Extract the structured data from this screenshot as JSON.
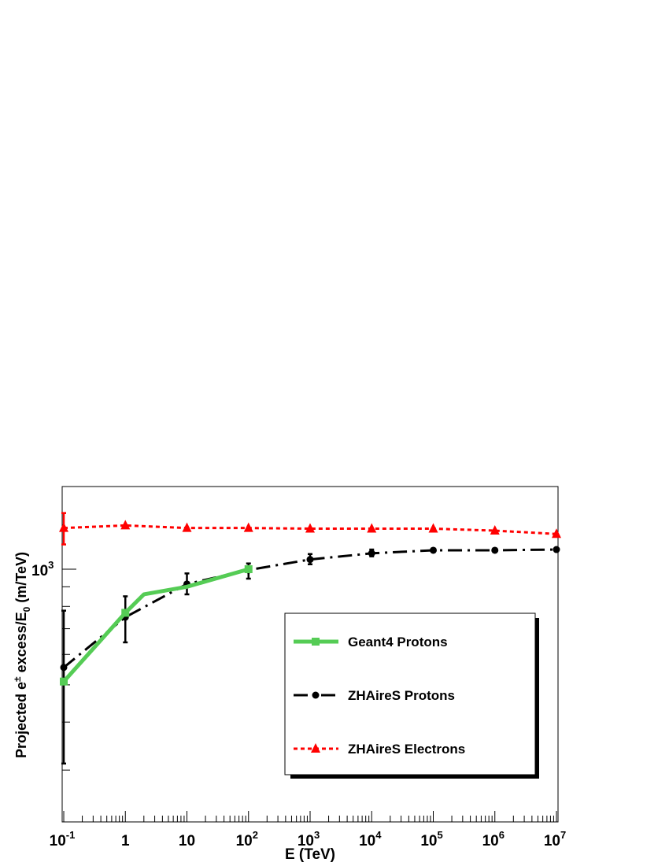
{
  "chart_data": {
    "type": "line",
    "x_scale": "log",
    "y_scale": "log",
    "xlabel": "E (TeV)",
    "ylabel": {
      "before_sup": "Projected e",
      "sup": "±",
      "after_sup": " excess/E",
      "sub": "0",
      "after_sub": " (m/TeV)"
    },
    "xlim": [
      0.1,
      10000000
    ],
    "ylim": [
      300,
      1600
    ],
    "x_ticks": [
      {
        "value": 0.1,
        "base": "10",
        "exp": "-1"
      },
      {
        "value": 1,
        "base": "1",
        "exp": ""
      },
      {
        "value": 10,
        "base": "10",
        "exp": ""
      },
      {
        "value": 100,
        "base": "10",
        "exp": "2"
      },
      {
        "value": 1000,
        "base": "10",
        "exp": "3"
      },
      {
        "value": 10000,
        "base": "10",
        "exp": "4"
      },
      {
        "value": 100000,
        "base": "10",
        "exp": "5"
      },
      {
        "value": 1000000,
        "base": "10",
        "exp": "6"
      },
      {
        "value": 10000000,
        "base": "10",
        "exp": "7"
      }
    ],
    "y_ticks": [
      {
        "value": 1000,
        "base": "10",
        "exp": "3"
      }
    ],
    "y_minor_ticks": [
      300,
      400,
      500,
      600,
      700,
      800,
      900
    ],
    "series": [
      {
        "name": "Geant4 Protons",
        "color": "#55cc55",
        "style": "solid-thick",
        "marker": "square",
        "x": [
          0.1,
          1,
          2,
          10,
          100
        ],
        "y": [
          510,
          770,
          860,
          900,
          1000
        ],
        "markers_at": [
          0.1,
          1,
          100
        ],
        "errors": []
      },
      {
        "name": "ZHAireS Protons",
        "color": "#000000",
        "style": "dash-dot",
        "marker": "circle",
        "x": [
          0.1,
          1,
          10,
          100,
          1000,
          10000,
          100000,
          1000000,
          10000000
        ],
        "y": [
          555,
          750,
          915,
          995,
          1060,
          1100,
          1120,
          1120,
          1125
        ],
        "markers_at": [
          0.1,
          1,
          10,
          100,
          1000,
          10000,
          100000,
          1000000,
          10000000
        ],
        "errors": [
          {
            "x": 0.1,
            "lo": 312,
            "hi": 780
          },
          {
            "x": 1,
            "lo": 645,
            "hi": 850
          },
          {
            "x": 10,
            "lo": 860,
            "hi": 975
          },
          {
            "x": 100,
            "lo": 945,
            "hi": 1035
          },
          {
            "x": 1000,
            "lo": 1030,
            "hi": 1095
          },
          {
            "x": 10000,
            "lo": 1080,
            "hi": 1125
          }
        ]
      },
      {
        "name": "ZHAireS Electrons",
        "color": "#ff0000",
        "style": "dotted",
        "marker": "triangle",
        "x": [
          0.1,
          1,
          10,
          100,
          1000,
          10000,
          100000,
          1000000,
          10000000
        ],
        "y": [
          1280,
          1300,
          1280,
          1280,
          1275,
          1275,
          1275,
          1260,
          1235
        ],
        "markers_at": [
          0.1,
          1,
          10,
          100,
          1000,
          10000,
          100000,
          1000000,
          10000000
        ],
        "errors": [
          {
            "x": 0.1,
            "lo": 1160,
            "hi": 1400
          }
        ]
      }
    ],
    "legend": {
      "placement": "lower-right inside",
      "border": true,
      "shadow": true
    }
  }
}
